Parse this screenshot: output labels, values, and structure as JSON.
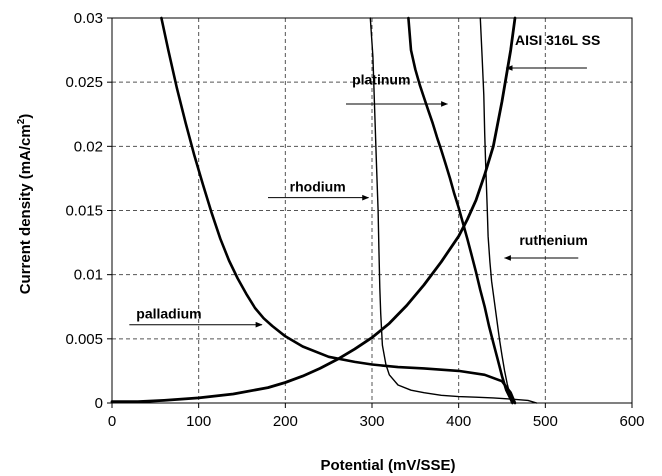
{
  "chart_data": {
    "type": "line",
    "xlabel": "Potential (mV/SSE)",
    "ylabel_main": "Current density (mA/cm",
    "ylabel_sup": "2",
    "ylabel_close": ")",
    "xlim": [
      0,
      600
    ],
    "ylim": [
      0,
      0.03
    ],
    "x_ticks": [
      0,
      100,
      200,
      300,
      400,
      500,
      600
    ],
    "y_ticks": [
      0,
      0.005,
      0.01,
      0.015,
      0.02,
      0.025,
      0.03
    ],
    "y_tick_labels": [
      "0",
      "0.005",
      "0.01",
      "0.015",
      "0.02",
      "0.025",
      "0.03"
    ],
    "grid": true,
    "series": [
      {
        "name": "palladium",
        "x": [
          57,
          65,
          75,
          85,
          95,
          105,
          115,
          125,
          135,
          145,
          155,
          165,
          175,
          185,
          200,
          220,
          250,
          280,
          300,
          330,
          360,
          400,
          430,
          450,
          460,
          465
        ],
        "y": [
          0.03,
          0.0275,
          0.0245,
          0.0218,
          0.0193,
          0.017,
          0.0148,
          0.0128,
          0.0111,
          0.0097,
          0.0085,
          0.0074,
          0.0066,
          0.006,
          0.0052,
          0.0044,
          0.0036,
          0.0032,
          0.003,
          0.0028,
          0.0027,
          0.0025,
          0.0022,
          0.0017,
          0.0008,
          0.0
        ]
      },
      {
        "name": "rhodium",
        "x": [
          298,
          301,
          303,
          305,
          307,
          308,
          309,
          310,
          312,
          316,
          320,
          330,
          345,
          360,
          380,
          400,
          420,
          440,
          460,
          480,
          490
        ],
        "y": [
          0.03,
          0.027,
          0.023,
          0.019,
          0.015,
          0.012,
          0.009,
          0.007,
          0.0045,
          0.003,
          0.0022,
          0.0014,
          0.001,
          0.0008,
          0.0006,
          0.0005,
          0.00045,
          0.0004,
          0.0003,
          0.0002,
          0.0
        ]
      },
      {
        "name": "platinum",
        "x": [
          342,
          345,
          350,
          355,
          360,
          365,
          370,
          375,
          380,
          385,
          390,
          395,
          400,
          405,
          410,
          415,
          420,
          425,
          430,
          435,
          440,
          445,
          450,
          455,
          460,
          462
        ],
        "y": [
          0.03,
          0.0275,
          0.026,
          0.0248,
          0.0238,
          0.0228,
          0.0218,
          0.0207,
          0.0197,
          0.0186,
          0.0175,
          0.0163,
          0.0152,
          0.014,
          0.0128,
          0.0115,
          0.0102,
          0.0088,
          0.0075,
          0.006,
          0.0047,
          0.0034,
          0.0021,
          0.001,
          0.0003,
          0.0
        ]
      },
      {
        "name": "ruthenium",
        "x": [
          425,
          427,
          429,
          430,
          431,
          432,
          433,
          434,
          436,
          438,
          441,
          444,
          447,
          450,
          453,
          456,
          459,
          461,
          463,
          464
        ],
        "y": [
          0.03,
          0.027,
          0.024,
          0.021,
          0.019,
          0.017,
          0.015,
          0.013,
          0.011,
          0.0095,
          0.008,
          0.0065,
          0.005,
          0.0037,
          0.0025,
          0.0015,
          0.0007,
          0.0003,
          0.0001,
          0.0
        ]
      },
      {
        "name": "AISI 316L SS",
        "x": [
          0,
          30,
          60,
          100,
          140,
          180,
          200,
          220,
          240,
          260,
          280,
          300,
          320,
          340,
          360,
          380,
          400,
          410,
          420,
          430,
          440,
          450,
          460,
          465
        ],
        "y": [
          0.0001,
          0.0001,
          0.0002,
          0.0004,
          0.0007,
          0.0012,
          0.0016,
          0.0021,
          0.0027,
          0.0034,
          0.0042,
          0.0051,
          0.0062,
          0.0076,
          0.0092,
          0.011,
          0.013,
          0.0143,
          0.0158,
          0.0178,
          0.02,
          0.0235,
          0.0275,
          0.03
        ]
      }
    ],
    "annotations": [
      {
        "label": "AISI 316L SS",
        "tx": 465,
        "ty": 0.0279,
        "lx1": 455,
        "ly1": 0.0261,
        "lx2": 548,
        "ly2": 0.0261,
        "arrow_end": "start"
      },
      {
        "label": "platinum",
        "tx": 277,
        "ty": 0.0248,
        "lx1": 270,
        "ly1": 0.0233,
        "lx2": 387,
        "ly2": 0.0233,
        "arrow_end": "end"
      },
      {
        "label": "rhodium",
        "tx": 205,
        "ty": 0.0165,
        "lx1": 180,
        "ly1": 0.016,
        "lx2": 296,
        "ly2": 0.016,
        "arrow_end": "end"
      },
      {
        "label": "ruthenium",
        "tx": 470,
        "ty": 0.0123,
        "lx1": 453,
        "ly1": 0.0113,
        "lx2": 538,
        "ly2": 0.0113,
        "arrow_end": "start"
      },
      {
        "label": "palladium",
        "tx": 28,
        "ty": 0.0066,
        "lx1": 20,
        "ly1": 0.0061,
        "lx2": 173,
        "ly2": 0.0061,
        "arrow_end": "end"
      }
    ]
  }
}
